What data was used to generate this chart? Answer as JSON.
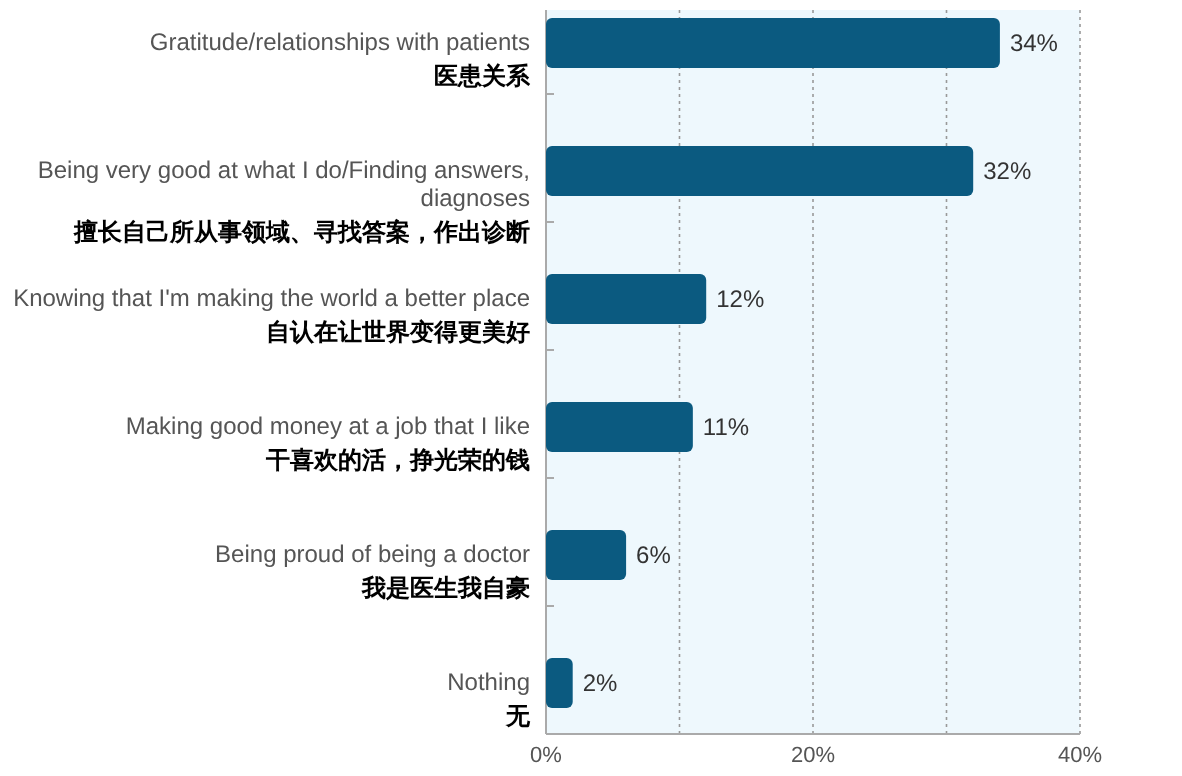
{
  "chart_data": {
    "type": "bar",
    "orientation": "horizontal",
    "categories": [
      "Gratitude/relationships with patients\n医患关系",
      "Being very good at what I do/Finding answers, diagnoses\n擅长自己所从事领域、寻找答案，作出诊断",
      "Knowing that I'm making the world a better place\n自认在让世界变得更美好",
      "Making good money at a job that I like\n干喜欢的活，挣光荣的钱",
      "Being proud of being a doctor\n我是医生我自豪",
      "Nothing\n无"
    ],
    "values": [
      34,
      32,
      12,
      11,
      6,
      2
    ],
    "value_labels": [
      "34%",
      "32%",
      "12%",
      "11%",
      "6%",
      "2%"
    ],
    "color": "#0b5a80",
    "xlim": [
      0,
      40
    ],
    "xticks": [
      {
        "value": 0,
        "label": "0%"
      },
      {
        "value": 10,
        "label": null
      },
      {
        "value": 20,
        "label": "20%"
      },
      {
        "value": 30,
        "label": null
      },
      {
        "value": 40,
        "label": "40%"
      }
    ],
    "grid": "x"
  }
}
